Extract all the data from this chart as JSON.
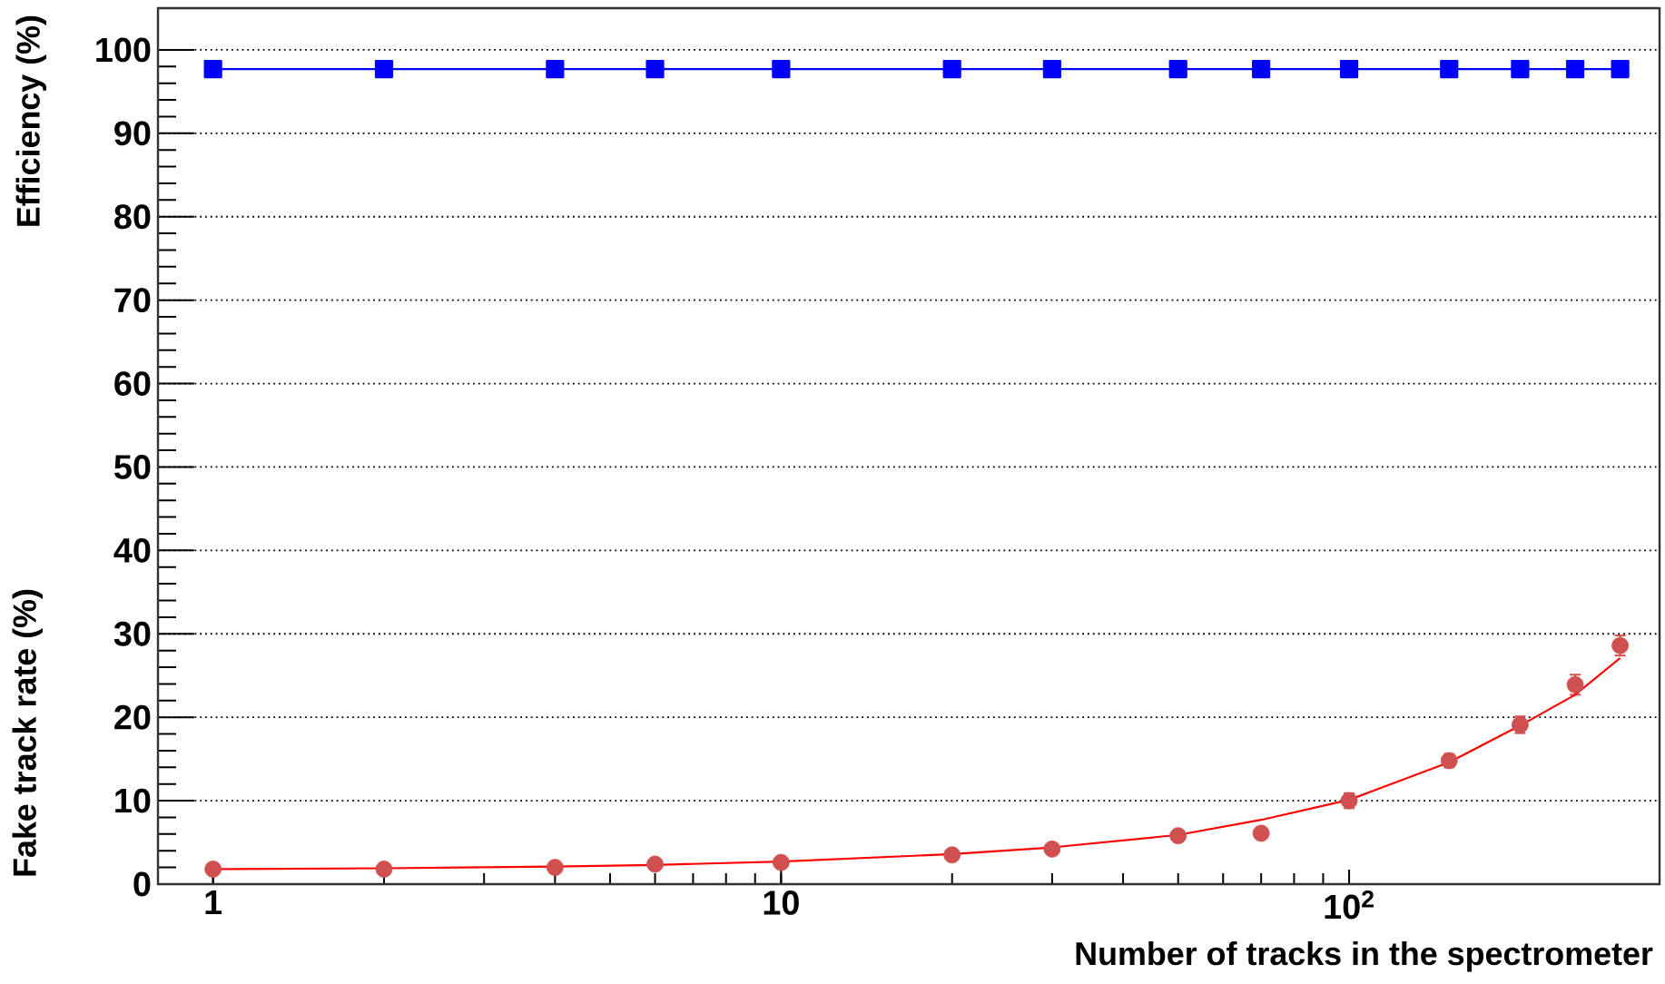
{
  "chart_data": {
    "type": "scatter",
    "xlabel": "Number of tracks in the spectrometer",
    "ylabel": "Efficiency (%)",
    "annotations": [
      "Fake track rate (%)"
    ],
    "log": "x",
    "grid": "y",
    "xlim": [
      0.8,
      352
    ],
    "xticks": [
      1,
      10,
      {
        "value": 100,
        "label": "10$^{2}$"
      }
    ],
    "ylim": [
      0,
      105
    ],
    "yticks": [
      0,
      10,
      20,
      30,
      40,
      50,
      60,
      70,
      80,
      90,
      100
    ],
    "series": [
      {
        "type": "line",
        "marker": "square",
        "color": "#0000ff",
        "x": [
          1,
          2,
          4,
          6,
          10,
          20,
          30,
          50,
          70,
          100,
          150,
          200,
          250,
          300
        ],
        "values": [
          97.7,
          97.7,
          97.7,
          97.7,
          97.7,
          97.7,
          97.7,
          97.7,
          97.7,
          97.7,
          97.7,
          97.7,
          97.7,
          97.7
        ]
      },
      {
        "marker": "circle",
        "color": "#d05050",
        "x": [
          1,
          2,
          4,
          6,
          10,
          20,
          30,
          50,
          70,
          100,
          150,
          200,
          250,
          300
        ],
        "values": [
          1.8,
          1.8,
          2.0,
          2.4,
          2.6,
          3.5,
          4.2,
          5.8,
          6.1,
          10.0,
          14.8,
          19.1,
          23.9,
          28.6
        ],
        "errors": [
          0.5,
          0.4,
          0.4,
          0.4,
          0.4,
          0.4,
          0.4,
          0.5,
          0.5,
          0.9,
          0.8,
          1.0,
          1.2,
          1.2
        ]
      },
      {
        "type": "line",
        "marker": "none",
        "color": "#ff0000",
        "x": [
          1,
          2,
          4,
          6,
          10,
          20,
          30,
          50,
          70,
          100,
          150,
          200,
          250,
          300
        ],
        "values": [
          1.8,
          1.9,
          2.1,
          2.3,
          2.7,
          3.6,
          4.4,
          5.9,
          7.7,
          10.1,
          14.6,
          19.0,
          22.7,
          27.1
        ]
      }
    ]
  }
}
